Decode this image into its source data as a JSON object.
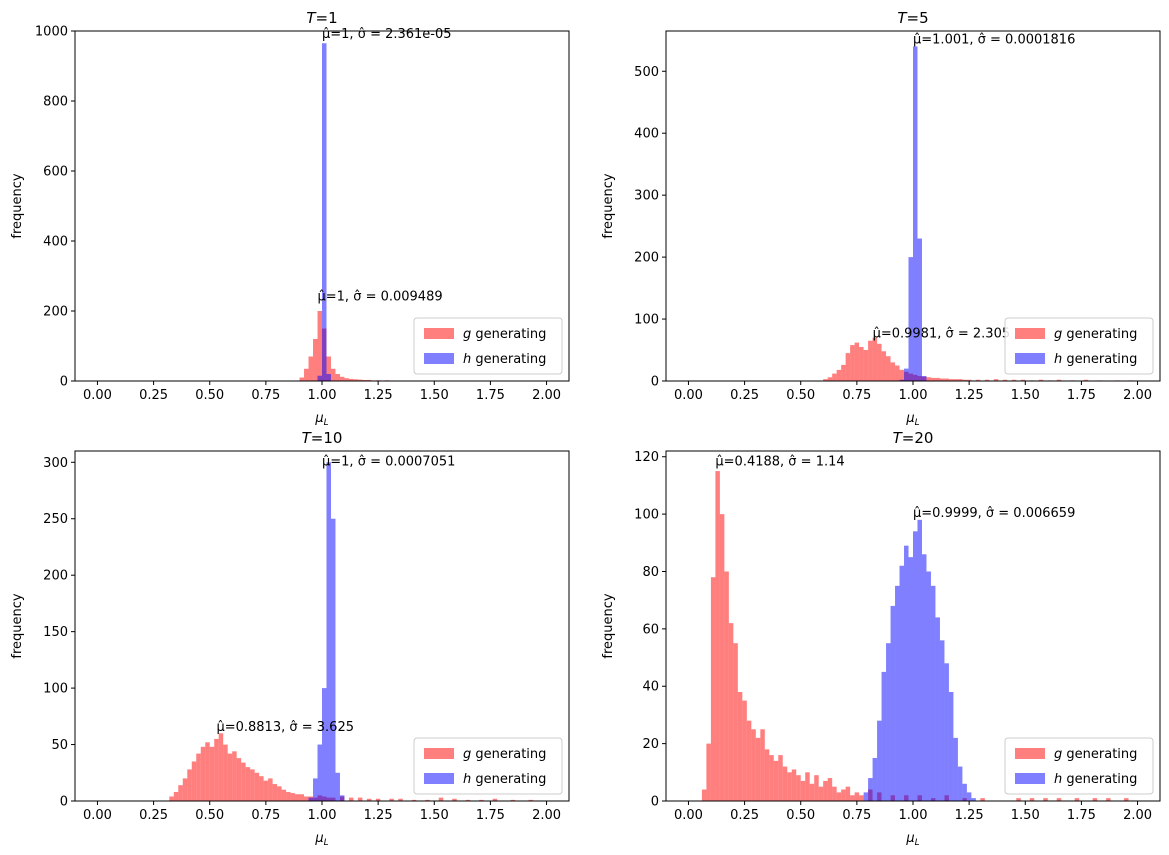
{
  "figure": {
    "xlabel": "μ_L",
    "ylabel": "frequency"
  },
  "legend": {
    "items": [
      {
        "prefix": "g",
        "suffix": " generating",
        "color": "#ff0000",
        "opacity": 0.5
      },
      {
        "prefix": "h",
        "suffix": " generating",
        "color": "#0000ff",
        "opacity": 0.5
      }
    ],
    "placement": "lower-right"
  },
  "chart_data": [
    {
      "type": "histogram",
      "title": "T=1",
      "xlim": [
        -0.1,
        2.1
      ],
      "ylim": [
        0,
        1000
      ],
      "xticks": [
        0.0,
        0.25,
        0.5,
        0.75,
        1.0,
        1.25,
        1.5,
        1.75,
        2.0
      ],
      "yticks": [
        0,
        200,
        400,
        600,
        800,
        1000
      ],
      "bin_width": 0.02,
      "series": [
        {
          "name": "g generating",
          "bins": [
            [
              0.9,
              10
            ],
            [
              0.92,
              35
            ],
            [
              0.94,
              70
            ],
            [
              0.96,
              120
            ],
            [
              0.98,
              200
            ],
            [
              1.0,
              150
            ],
            [
              1.02,
              70
            ],
            [
              1.04,
              35
            ],
            [
              1.06,
              20
            ],
            [
              1.08,
              12
            ],
            [
              1.1,
              8
            ],
            [
              1.12,
              6
            ],
            [
              1.14,
              5
            ],
            [
              1.16,
              4
            ],
            [
              1.18,
              3
            ],
            [
              1.2,
              3
            ],
            [
              1.24,
              2
            ],
            [
              1.28,
              2
            ],
            [
              1.34,
              1
            ],
            [
              1.4,
              1
            ],
            [
              1.48,
              1
            ],
            [
              1.56,
              1
            ],
            [
              1.66,
              1
            ],
            [
              1.76,
              1
            ],
            [
              1.86,
              1
            ]
          ],
          "annotation": "μ̂=1, σ̂ = 0.009489",
          "annotation_at": [
            0.98,
            230
          ]
        },
        {
          "name": "h generating",
          "bins": [
            [
              0.98,
              15
            ],
            [
              1.0,
              965
            ],
            [
              1.02,
              20
            ]
          ],
          "annotation": "μ̂=1, σ̂ = 2.361e-05",
          "annotation_at": [
            1.0,
            980
          ]
        }
      ]
    },
    {
      "type": "histogram",
      "title": "T=5",
      "xlim": [
        -0.1,
        2.1
      ],
      "ylim": [
        0,
        565
      ],
      "xticks": [
        0.0,
        0.25,
        0.5,
        0.75,
        1.0,
        1.25,
        1.5,
        1.75,
        2.0
      ],
      "yticks": [
        0,
        100,
        200,
        300,
        400,
        500
      ],
      "bin_width": 0.02,
      "series": [
        {
          "name": "g generating",
          "bins": [
            [
              0.6,
              3
            ],
            [
              0.62,
              6
            ],
            [
              0.64,
              12
            ],
            [
              0.66,
              18
            ],
            [
              0.68,
              26
            ],
            [
              0.7,
              45
            ],
            [
              0.72,
              58
            ],
            [
              0.74,
              62
            ],
            [
              0.76,
              55
            ],
            [
              0.78,
              50
            ],
            [
              0.8,
              65
            ],
            [
              0.82,
              70
            ],
            [
              0.84,
              60
            ],
            [
              0.86,
              48
            ],
            [
              0.88,
              40
            ],
            [
              0.9,
              30
            ],
            [
              0.92,
              25
            ],
            [
              0.94,
              18
            ],
            [
              0.96,
              15
            ],
            [
              0.98,
              12
            ],
            [
              1.0,
              10
            ],
            [
              1.02,
              8
            ],
            [
              1.04,
              7
            ],
            [
              1.06,
              6
            ],
            [
              1.08,
              5
            ],
            [
              1.1,
              5
            ],
            [
              1.12,
              4
            ],
            [
              1.14,
              4
            ],
            [
              1.16,
              3
            ],
            [
              1.18,
              3
            ],
            [
              1.2,
              3
            ],
            [
              1.22,
              2
            ],
            [
              1.24,
              2
            ],
            [
              1.28,
              2
            ],
            [
              1.32,
              2
            ],
            [
              1.36,
              3
            ],
            [
              1.4,
              2
            ],
            [
              1.44,
              2
            ],
            [
              1.48,
              2
            ],
            [
              1.52,
              1
            ],
            [
              1.56,
              2
            ],
            [
              1.6,
              1
            ],
            [
              1.64,
              2
            ],
            [
              1.7,
              1
            ],
            [
              1.76,
              2
            ],
            [
              1.82,
              1
            ],
            [
              1.9,
              1
            ],
            [
              1.96,
              1
            ]
          ],
          "annotation": "μ̂=0.9981, σ̂ = 2.305",
          "annotation_at": [
            0.82,
            70
          ]
        },
        {
          "name": "h generating",
          "bins": [
            [
              0.94,
              2
            ],
            [
              0.96,
              20
            ],
            [
              0.98,
              200
            ],
            [
              1.0,
              540
            ],
            [
              1.02,
              230
            ],
            [
              1.04,
              8
            ]
          ],
          "annotation": "μ̂=1.001, σ̂ = 0.0001816",
          "annotation_at": [
            1.0,
            545
          ]
        }
      ]
    },
    {
      "type": "histogram",
      "title": "T=10",
      "xlim": [
        -0.1,
        2.1
      ],
      "ylim": [
        0,
        310
      ],
      "xticks": [
        0.0,
        0.25,
        0.5,
        0.75,
        1.0,
        1.25,
        1.5,
        1.75,
        2.0
      ],
      "yticks": [
        0,
        50,
        100,
        150,
        200,
        250,
        300
      ],
      "bin_width": 0.02,
      "series": [
        {
          "name": "g generating",
          "bins": [
            [
              0.32,
              4
            ],
            [
              0.34,
              8
            ],
            [
              0.36,
              14
            ],
            [
              0.38,
              20
            ],
            [
              0.4,
              28
            ],
            [
              0.42,
              35
            ],
            [
              0.44,
              42
            ],
            [
              0.46,
              48
            ],
            [
              0.48,
              52
            ],
            [
              0.5,
              48
            ],
            [
              0.52,
              55
            ],
            [
              0.54,
              60
            ],
            [
              0.56,
              50
            ],
            [
              0.58,
              42
            ],
            [
              0.6,
              44
            ],
            [
              0.62,
              38
            ],
            [
              0.64,
              34
            ],
            [
              0.66,
              30
            ],
            [
              0.68,
              28
            ],
            [
              0.7,
              25
            ],
            [
              0.72,
              22
            ],
            [
              0.74,
              18
            ],
            [
              0.76,
              20
            ],
            [
              0.78,
              15
            ],
            [
              0.8,
              13
            ],
            [
              0.82,
              10
            ],
            [
              0.84,
              8
            ],
            [
              0.86,
              7
            ],
            [
              0.88,
              6
            ],
            [
              0.9,
              6
            ],
            [
              0.92,
              4
            ],
            [
              0.94,
              4
            ],
            [
              0.96,
              3
            ],
            [
              0.98,
              5
            ],
            [
              1.0,
              4
            ],
            [
              1.02,
              3
            ],
            [
              1.04,
              3
            ],
            [
              1.08,
              4
            ],
            [
              1.12,
              3
            ],
            [
              1.16,
              3
            ],
            [
              1.2,
              2
            ],
            [
              1.24,
              2
            ],
            [
              1.3,
              2
            ],
            [
              1.34,
              2
            ],
            [
              1.4,
              1
            ],
            [
              1.46,
              1
            ],
            [
              1.52,
              3
            ],
            [
              1.58,
              2
            ],
            [
              1.64,
              1
            ],
            [
              1.7,
              1
            ],
            [
              1.76,
              2
            ],
            [
              1.84,
              1
            ],
            [
              1.92,
              1
            ]
          ],
          "annotation": "μ̂=0.8813, σ̂ = 3.625",
          "annotation_at": [
            0.53,
            62
          ]
        },
        {
          "name": "h generating",
          "bins": [
            [
              0.94,
              3
            ],
            [
              0.96,
              20
            ],
            [
              0.98,
              50
            ],
            [
              1.0,
              100
            ],
            [
              1.02,
              300
            ],
            [
              1.04,
              250
            ],
            [
              1.06,
              25
            ],
            [
              1.08,
              5
            ]
          ],
          "annotation": "μ̂=1, σ̂ = 0.0007051",
          "annotation_at": [
            1.0,
            297
          ]
        }
      ]
    },
    {
      "type": "histogram",
      "title": "T=20",
      "xlim": [
        -0.1,
        2.1
      ],
      "ylim": [
        0,
        122
      ],
      "xticks": [
        0.0,
        0.25,
        0.5,
        0.75,
        1.0,
        1.25,
        1.5,
        1.75,
        2.0
      ],
      "yticks": [
        0,
        20,
        40,
        60,
        80,
        100,
        120
      ],
      "bin_width": 0.02,
      "series": [
        {
          "name": "g generating",
          "bins": [
            [
              0.06,
              4
            ],
            [
              0.08,
              20
            ],
            [
              0.1,
              78
            ],
            [
              0.12,
              115
            ],
            [
              0.14,
              100
            ],
            [
              0.16,
              80
            ],
            [
              0.18,
              62
            ],
            [
              0.2,
              55
            ],
            [
              0.22,
              38
            ],
            [
              0.24,
              35
            ],
            [
              0.26,
              28
            ],
            [
              0.28,
              25
            ],
            [
              0.3,
              22
            ],
            [
              0.32,
              25
            ],
            [
              0.34,
              18
            ],
            [
              0.36,
              16
            ],
            [
              0.38,
              14
            ],
            [
              0.4,
              16
            ],
            [
              0.42,
              12
            ],
            [
              0.44,
              10
            ],
            [
              0.46,
              11
            ],
            [
              0.48,
              9
            ],
            [
              0.5,
              7
            ],
            [
              0.52,
              10
            ],
            [
              0.54,
              6
            ],
            [
              0.56,
              9
            ],
            [
              0.58,
              5
            ],
            [
              0.6,
              7
            ],
            [
              0.62,
              8
            ],
            [
              0.64,
              5
            ],
            [
              0.66,
              3
            ],
            [
              0.68,
              4
            ],
            [
              0.7,
              5
            ],
            [
              0.72,
              2
            ],
            [
              0.74,
              3
            ],
            [
              0.76,
              2
            ],
            [
              0.8,
              4
            ],
            [
              0.84,
              3
            ],
            [
              0.9,
              2
            ],
            [
              0.96,
              2
            ],
            [
              1.02,
              2
            ],
            [
              1.08,
              1
            ],
            [
              1.14,
              2
            ],
            [
              1.22,
              1
            ],
            [
              1.3,
              1
            ],
            [
              1.46,
              1
            ],
            [
              1.52,
              1
            ],
            [
              1.58,
              1
            ],
            [
              1.64,
              1
            ],
            [
              1.72,
              1
            ],
            [
              1.8,
              1
            ],
            [
              1.86,
              1
            ],
            [
              1.94,
              1
            ]
          ],
          "annotation": "μ̂=0.4188, σ̂ = 1.14",
          "annotation_at": [
            0.12,
            117
          ]
        },
        {
          "name": "h generating",
          "bins": [
            [
              0.78,
              3
            ],
            [
              0.8,
              8
            ],
            [
              0.82,
              15
            ],
            [
              0.84,
              28
            ],
            [
              0.86,
              45
            ],
            [
              0.88,
              55
            ],
            [
              0.9,
              68
            ],
            [
              0.92,
              75
            ],
            [
              0.94,
              82
            ],
            [
              0.96,
              89
            ],
            [
              0.98,
              85
            ],
            [
              1.0,
              94
            ],
            [
              1.02,
              98
            ],
            [
              1.04,
              86
            ],
            [
              1.06,
              80
            ],
            [
              1.08,
              75
            ],
            [
              1.1,
              64
            ],
            [
              1.12,
              56
            ],
            [
              1.14,
              48
            ],
            [
              1.16,
              38
            ],
            [
              1.18,
              22
            ],
            [
              1.2,
              12
            ],
            [
              1.22,
              6
            ],
            [
              1.24,
              3
            ],
            [
              1.26,
              1
            ]
          ],
          "annotation": "μ̂=0.9999, σ̂ = 0.006659",
          "annotation_at": [
            1.0,
            99
          ]
        }
      ]
    }
  ]
}
